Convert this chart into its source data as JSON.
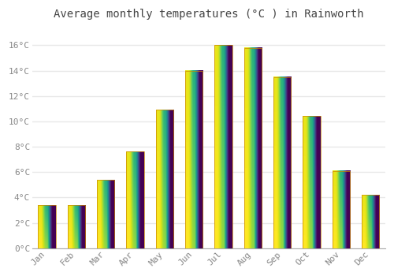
{
  "months": [
    "Jan",
    "Feb",
    "Mar",
    "Apr",
    "May",
    "Jun",
    "Jul",
    "Aug",
    "Sep",
    "Oct",
    "Nov",
    "Dec"
  ],
  "values": [
    3.4,
    3.4,
    5.4,
    7.6,
    10.9,
    14.0,
    16.0,
    15.8,
    13.5,
    10.4,
    6.1,
    4.2
  ],
  "bar_color": "#FFA500",
  "bar_color_top": "#F5A000",
  "bar_color_bottom": "#FFD700",
  "title": "Average monthly temperatures (°C ) in Rainworth",
  "ylim": [
    0,
    17.5
  ],
  "yticks": [
    0,
    2,
    4,
    6,
    8,
    10,
    12,
    14,
    16
  ],
  "ytick_labels": [
    "0°C",
    "2°C",
    "4°C",
    "6°C",
    "8°C",
    "10°C",
    "12°C",
    "14°C",
    "16°C"
  ],
  "background_color": "#FFFFFF",
  "grid_color": "#E8E8E8",
  "title_fontsize": 10,
  "tick_fontsize": 8,
  "tick_color": "#888888",
  "bar_width": 0.6
}
